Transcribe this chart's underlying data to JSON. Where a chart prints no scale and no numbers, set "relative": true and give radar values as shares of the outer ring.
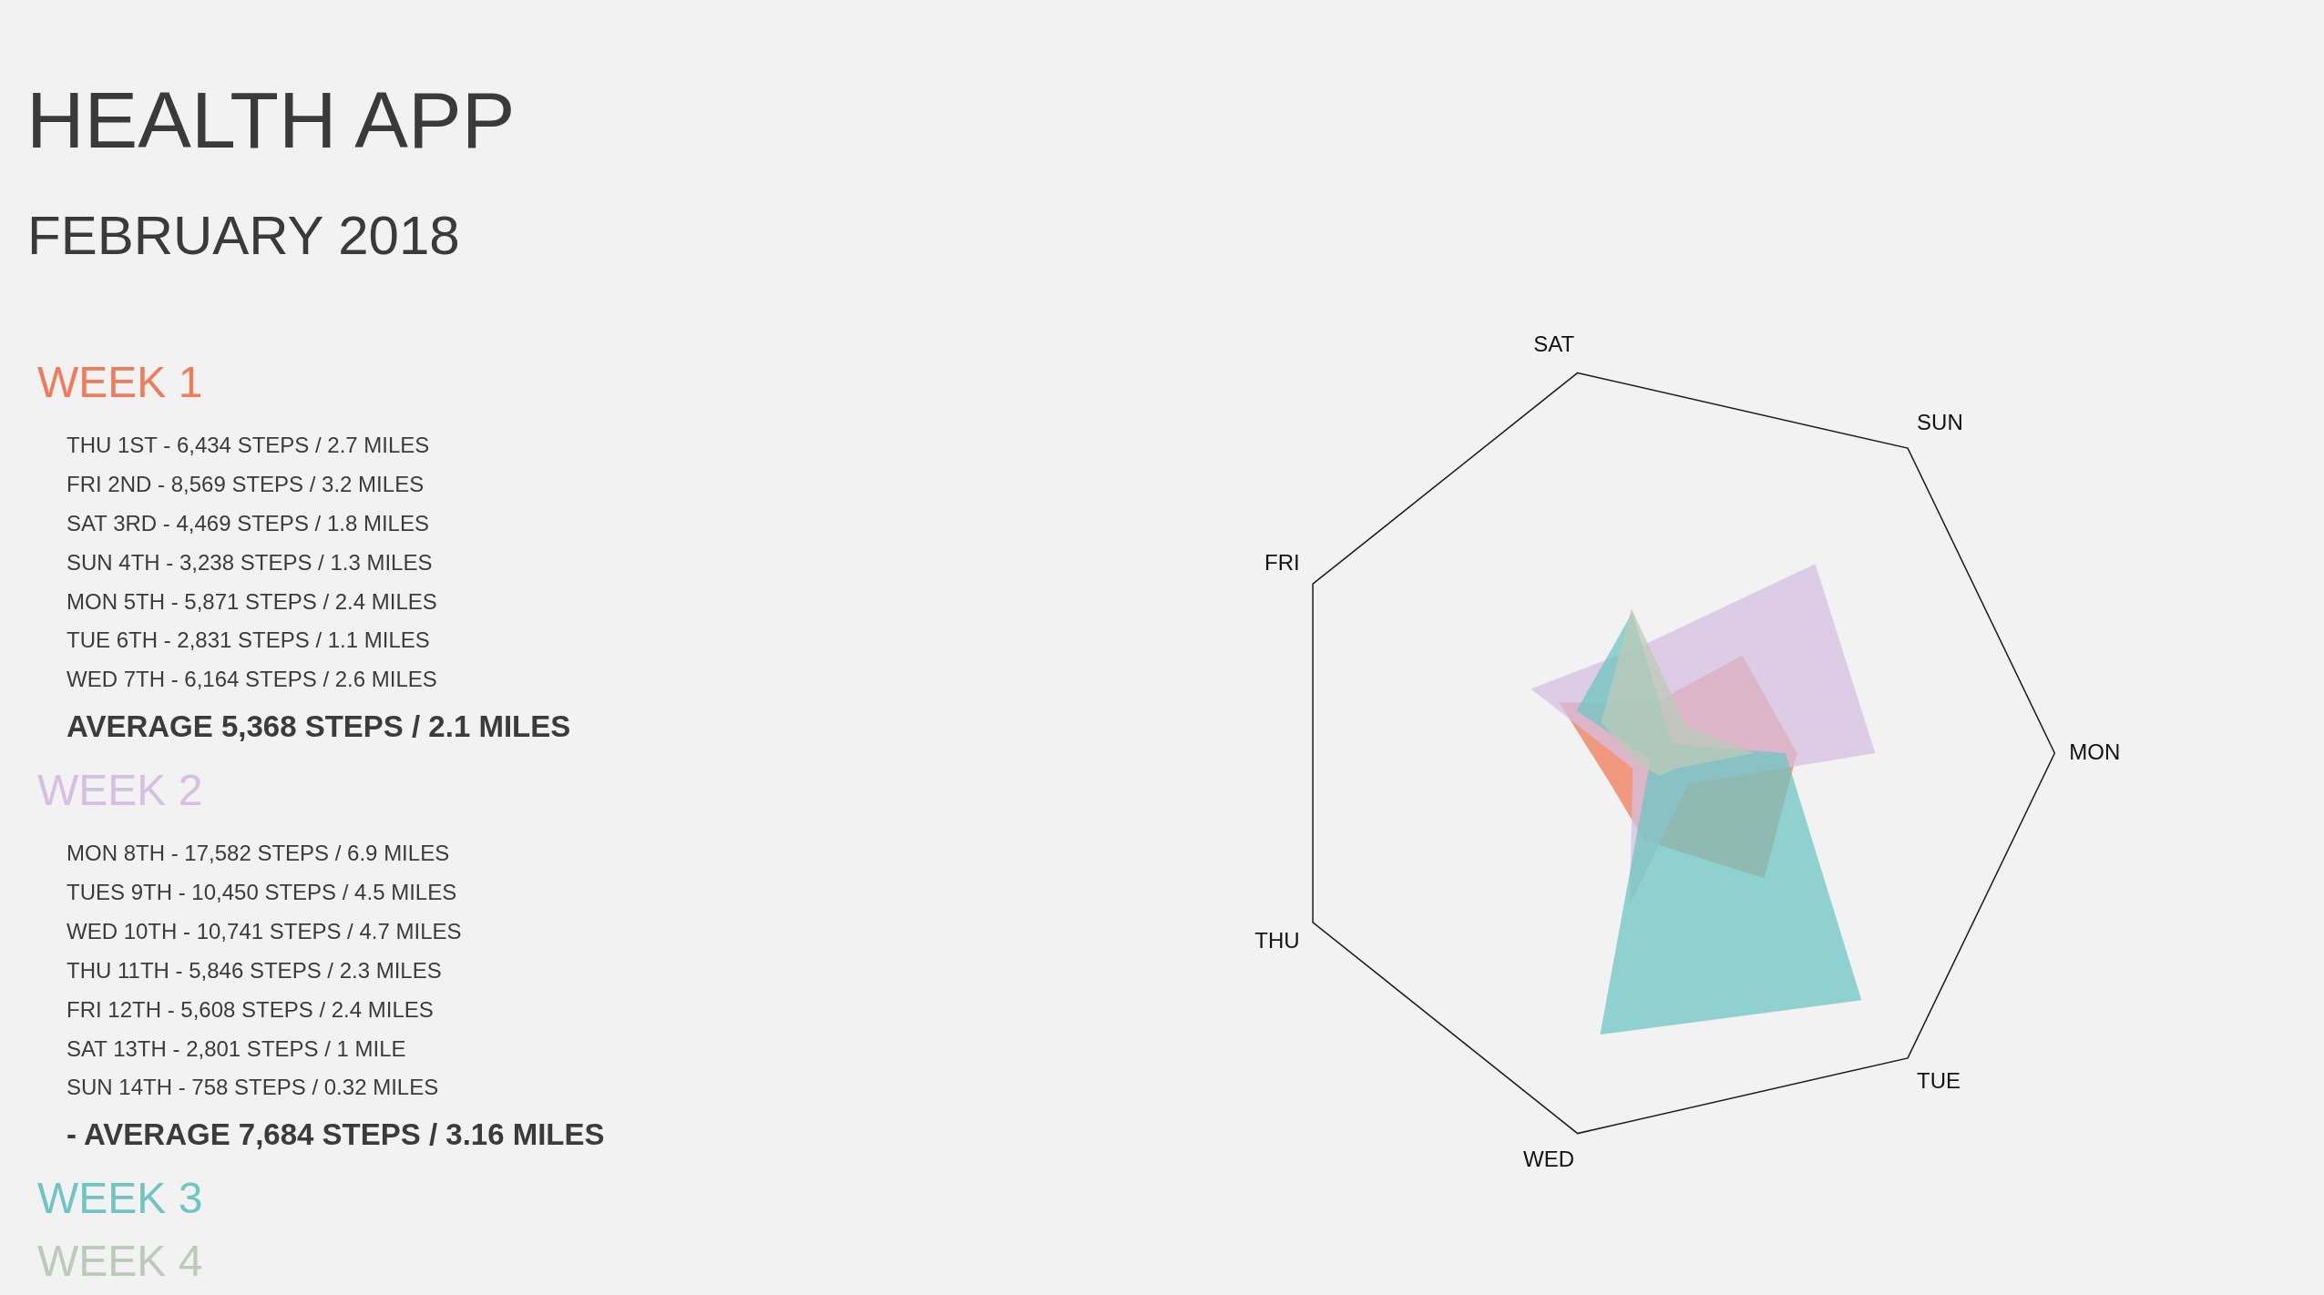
{
  "chart_data": {
    "type": "radar",
    "title": "HEALTH APP",
    "subtitle": "FEBRUARY 2018",
    "categories": [
      "SAT",
      "SUN",
      "MON",
      "TUE",
      "WED",
      "THU",
      "FRI"
    ],
    "relative": true,
    "legend": "left",
    "series": [
      {
        "name": "WEEK 1",
        "color": "#ef7b59",
        "values": [
          0.13,
          0.32,
          0.34,
          0.41,
          0.23,
          0.16,
          0.3
        ]
      },
      {
        "name": "WEEK 2",
        "color": "#d6bfe2",
        "values": [
          0.28,
          0.62,
          0.54,
          0.1,
          0.4,
          0.09,
          0.38
        ]
      },
      {
        "name": "WEEK 3",
        "color": "#6ec5c2",
        "values": [
          0.37,
          0.03,
          0.31,
          0.81,
          0.74,
          0.04,
          0.25
        ]
      },
      {
        "name": "WEEK 4",
        "color": "#bccab9",
        "values": [
          0.38,
          0.09,
          0.23,
          0.05,
          0.06,
          0.07,
          0.18
        ]
      }
    ],
    "annotations": [
      "THU 1ST - 6,434 STEPS / 2.7 MILES",
      "FRI 2ND - 8,569 STEPS / 3.2 MILES",
      "SAT 3RD - 4,469 STEPS / 1.8 MILES",
      "SUN 4TH - 3,238 STEPS / 1.3 MILES",
      "MON 5TH - 5,871 STEPS / 2.4 MILES",
      "TUE 6TH - 2,831 STEPS / 1.1 MILES",
      "WED 7TH - 6,164 STEPS / 2.6 MILES",
      "AVERAGE 5,368 STEPS / 2.1 MILES",
      "MON 8TH - 17,582 STEPS / 6.9 MILES",
      "TUES 9TH - 10,450 STEPS / 4.5 MILES",
      "WED 10TH - 10,741 STEPS / 4.7 MILES",
      "THU 11TH - 5,846 STEPS / 2.3 MILES",
      "FRI 12TH - 5,608 STEPS / 2.4 MILES",
      "SAT 13TH - 2,801 STEPS / 1 MILE",
      "SUN 14TH - 758 STEPS / 0.32 MILES",
      "- AVERAGE 7,684 STEPS / 3.16 MILES"
    ]
  }
}
